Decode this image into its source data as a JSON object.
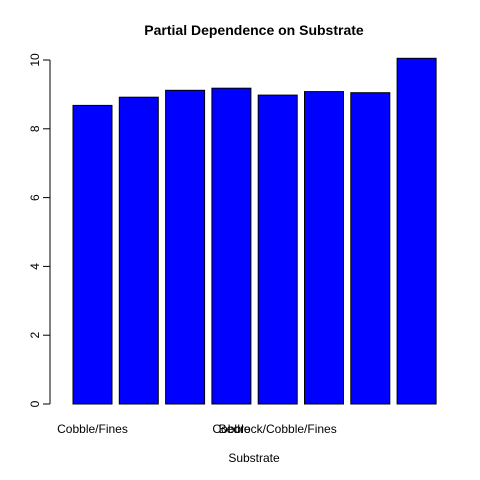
{
  "chart_data": {
    "type": "bar",
    "title": "Partial Dependence on Substrate",
    "xlabel": "Substrate",
    "ylabel": "",
    "ylim": [
      0,
      10
    ],
    "yticks": [
      0,
      2,
      4,
      6,
      8,
      10
    ],
    "bar_color": "#0000ff",
    "categories": [
      "Cobble/Fines",
      "",
      "",
      "Cobble",
      "Bedrock/Cobble/Fines",
      "",
      "",
      ""
    ],
    "values": [
      8.68,
      8.92,
      9.12,
      9.18,
      8.98,
      9.08,
      9.05,
      10.05
    ]
  }
}
